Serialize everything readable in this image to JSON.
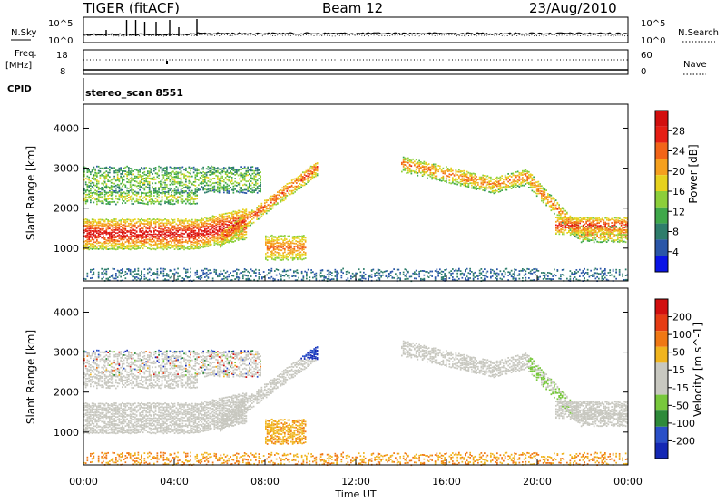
{
  "header": {
    "radar": "TIGER (fitACF)",
    "beam": "Beam 12",
    "date": "23/Aug/2010"
  },
  "panels": {
    "nsky_label": "N.Sky",
    "nsearch_label": "N.Search",
    "nsky_ticks": [
      "10^5",
      "10^0"
    ],
    "nsearch_ticks": [
      "10^5",
      "10^0"
    ],
    "freq_label_1": "Freq.",
    "freq_label_2": "[MHz]",
    "freq_ticks": [
      "18",
      "8"
    ],
    "nave_label": "Nave",
    "nave_ticks": [
      "60",
      "0"
    ],
    "cpid_label": "CPID",
    "cpid_value": "stereo_scan 8551"
  },
  "colors": {
    "power_scale": [
      "#0a14e6",
      "#2a56a8",
      "#2e7d6b",
      "#3fa84a",
      "#8ccf3a",
      "#e6d21e",
      "#f5a01e",
      "#f26418",
      "#e61e14",
      "#d20f0f"
    ],
    "velocity_scale": [
      "#1428b4",
      "#2a50c8",
      "#2e8a3a",
      "#78c83c",
      "#c8c8c0",
      "#c8c8c0",
      "#f0b41e",
      "#f07814",
      "#e63c14",
      "#d20f0f"
    ],
    "ground_scatter": "#c8c8c0"
  },
  "chart_data": [
    {
      "type": "heatmap",
      "title": "",
      "ylabel": "Slant Range [km]",
      "xlabel": "",
      "xlim": [
        "00:00",
        "00:00"
      ],
      "ylim": [
        180,
        4600
      ],
      "yticks": [
        "1000",
        "2000",
        "3000",
        "4000"
      ],
      "colorbar": {
        "label": "Power [dB]",
        "ticks": [
          "28",
          "24",
          "20",
          "16",
          "12",
          "8",
          "4"
        ],
        "range": [
          0,
          30
        ]
      },
      "bands": [
        {
          "description": "strong echo band",
          "t_start": 0.0,
          "t_end": 7.0,
          "range_km": [
            1000,
            1700
          ],
          "power_db": 28
        },
        {
          "description": "rising echo band",
          "t_start": 6.0,
          "t_end": 10.5,
          "range_km": [
            1100,
            3000
          ],
          "power_db": 24
        },
        {
          "description": "upper band",
          "t_start": 0.0,
          "t_end": 7.5,
          "range_km": [
            2400,
            3300
          ],
          "power_db": 14
        },
        {
          "description": "descending band",
          "t_start": 14.0,
          "t_end": 24.0,
          "range_km": [
            1200,
            3300
          ],
          "power_db": 22
        },
        {
          "description": "near-range noise",
          "t_start": 0.0,
          "t_end": 24.0,
          "range_km": [
            200,
            500
          ],
          "power_db": 6
        }
      ]
    },
    {
      "type": "heatmap",
      "title": "",
      "ylabel": "Slant Range [km]",
      "xlabel": "Time UT",
      "xticks": [
        "00:00",
        "04:00",
        "08:00",
        "12:00",
        "16:00",
        "20:00",
        "00:00"
      ],
      "ylim": [
        180,
        4600
      ],
      "yticks": [
        "1000",
        "2000",
        "3000",
        "4000"
      ],
      "colorbar": {
        "label": "Velocity [m s^-1]",
        "ticks": [
          "200",
          "100",
          "50",
          "15",
          "-15",
          "-50",
          "-100",
          "-200"
        ],
        "range": [
          -250,
          250
        ]
      }
    }
  ]
}
